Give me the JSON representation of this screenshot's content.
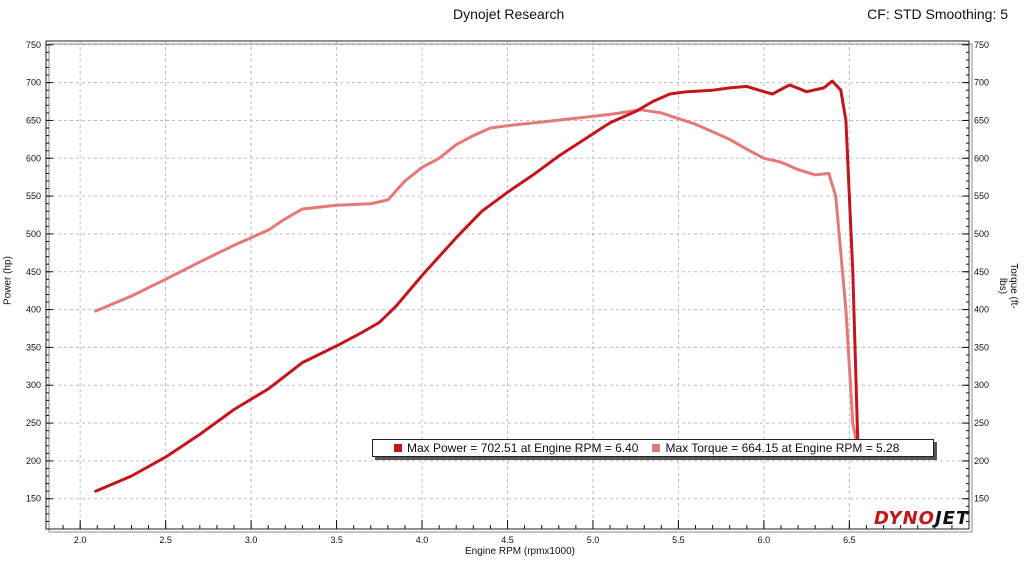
{
  "header": {
    "title": "Dynojet Research",
    "settings": "CF: STD Smoothing: 5"
  },
  "logo": {
    "part1": "DYNO",
    "part2": "JET"
  },
  "colors": {
    "power": "#c4151c",
    "torque": "#e47a78"
  },
  "chart_data": {
    "type": "line",
    "xlabel": "Engine RPM (rpmx1000)",
    "ylabel": "Power (hp)",
    "y2label": "Torque (ft-lbs)",
    "xlim": [
      1.8,
      7.2
    ],
    "ylim": [
      110,
      755
    ],
    "xticks": [
      "2.0",
      "2.5",
      "3.0",
      "3.5",
      "4.0",
      "4.5",
      "5.0",
      "5.5",
      "6.0",
      "6.5"
    ],
    "yticks": [
      "150",
      "200",
      "250",
      "300",
      "350",
      "400",
      "450",
      "500",
      "550",
      "600",
      "650",
      "700",
      "750"
    ],
    "y2ticks": [
      "150",
      "200",
      "250",
      "300",
      "350",
      "400",
      "450",
      "500",
      "550",
      "600",
      "650",
      "700",
      "750"
    ],
    "grid": true,
    "legend": {
      "position": "bottom-center",
      "power": "Max Power = 702.51 at Engine RPM = 6.40",
      "torque": "Max Torque = 664.15 at Engine RPM = 5.28"
    },
    "series": [
      {
        "name": "Power",
        "x": [
          2.09,
          2.3,
          2.5,
          2.7,
          2.9,
          3.1,
          3.3,
          3.5,
          3.65,
          3.75,
          3.85,
          4.0,
          4.1,
          4.2,
          4.35,
          4.5,
          4.65,
          4.8,
          4.95,
          5.1,
          5.25,
          5.35,
          5.45,
          5.55,
          5.7,
          5.8,
          5.9,
          6.0,
          6.05,
          6.15,
          6.25,
          6.35,
          6.4,
          6.45,
          6.48,
          6.52,
          6.55
        ],
        "values": [
          160,
          180,
          205,
          235,
          268,
          295,
          330,
          352,
          370,
          383,
          405,
          445,
          470,
          495,
          530,
          555,
          578,
          603,
          625,
          647,
          662,
          675,
          685,
          688,
          690,
          693,
          695,
          688,
          685,
          697,
          688,
          693,
          702,
          690,
          650,
          450,
          220
        ]
      },
      {
        "name": "Torque",
        "x": [
          2.09,
          2.3,
          2.5,
          2.7,
          2.9,
          3.0,
          3.1,
          3.2,
          3.3,
          3.5,
          3.7,
          3.8,
          3.9,
          4.0,
          4.1,
          4.2,
          4.3,
          4.4,
          4.5,
          4.7,
          4.9,
          5.1,
          5.28,
          5.4,
          5.6,
          5.8,
          5.9,
          6.0,
          6.1,
          6.2,
          6.3,
          6.38,
          6.42,
          6.48,
          6.52,
          6.55
        ],
        "values": [
          398,
          418,
          440,
          463,
          485,
          495,
          505,
          520,
          533,
          538,
          540,
          545,
          570,
          588,
          600,
          618,
          630,
          640,
          643,
          648,
          653,
          658,
          664,
          660,
          645,
          625,
          612,
          600,
          595,
          585,
          578,
          580,
          550,
          400,
          250,
          215
        ]
      }
    ]
  }
}
